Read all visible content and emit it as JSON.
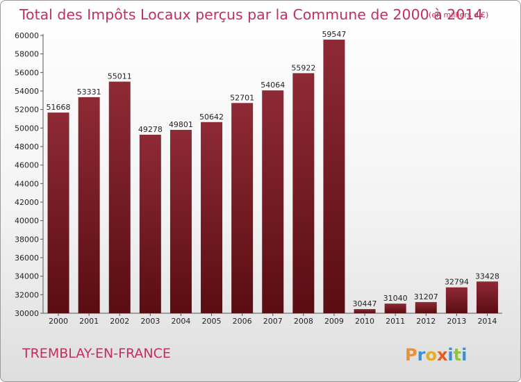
{
  "chart_data": {
    "type": "bar",
    "title": "Total des Impôts Locaux perçus par la Commune de 2000 à 2014",
    "title_unit": "(en milliers d'€)",
    "categories": [
      "2000",
      "2001",
      "2002",
      "2003",
      "2004",
      "2005",
      "2006",
      "2007",
      "2008",
      "2009",
      "2010",
      "2011",
      "2012",
      "2013",
      "2014"
    ],
    "values": [
      51668,
      53331,
      55011,
      49278,
      49801,
      50642,
      52701,
      54064,
      55922,
      59547,
      30447,
      31040,
      31207,
      32794,
      33428
    ],
    "ylim": [
      30000,
      60000
    ],
    "yticks": [
      30000,
      32000,
      34000,
      36000,
      38000,
      40000,
      42000,
      44000,
      46000,
      48000,
      50000,
      52000,
      54000,
      56000,
      58000,
      60000
    ],
    "grid": false,
    "bar_color": "#7a1522",
    "title_color": "#c0305a"
  },
  "footer": {
    "commune": "TREMBLAY-EN-FRANCE",
    "brand_letters": [
      {
        "ch": "P",
        "color": "#e8913a"
      },
      {
        "ch": "r",
        "color": "#3f8fcf"
      },
      {
        "ch": "o",
        "color": "#e0b020"
      },
      {
        "ch": "x",
        "color": "#e85a1e"
      },
      {
        "ch": "i",
        "color": "#3f8fcf"
      },
      {
        "ch": "t",
        "color": "#8cc63f"
      },
      {
        "ch": "i",
        "color": "#3f8fcf"
      }
    ]
  }
}
